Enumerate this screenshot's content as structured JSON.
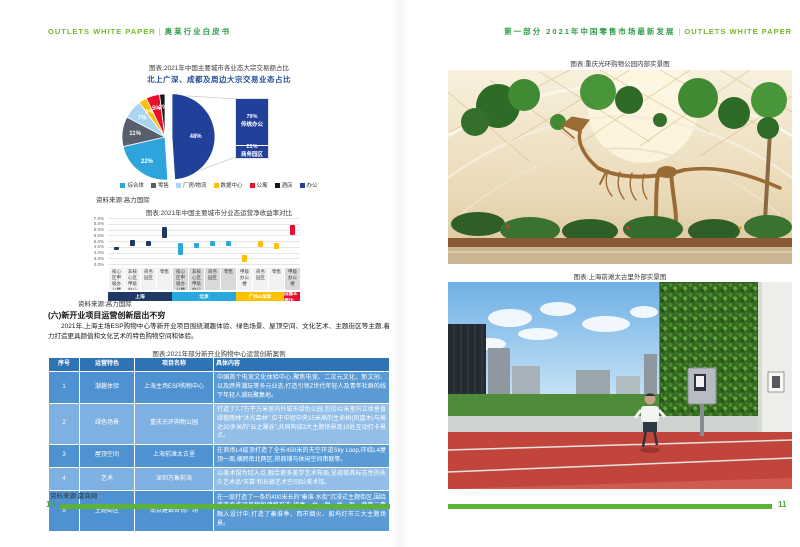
{
  "colors": {
    "accent_green": "#5CB335",
    "header_green_en": "#76B82A",
    "header_green_cn": "#2F9E49",
    "title_blue": "#1F4E9C",
    "table_header_blue": "#2E74B5",
    "table_row_blue": "#5B9BD5",
    "table_row_light_blue": "#92BEE8"
  },
  "left_page": {
    "header": {
      "en": "OUTLETS  WHITE PAPER",
      "sep": "|",
      "cn": "奥莱行业白皮书"
    },
    "pie_caption": "图表:2021年中国主要城市各业态大宗交易额占比",
    "source_colliers_1": "资料来源:高力国际",
    "bar_caption": "图表:2021年中国主要城市分业态运营净收益率对比",
    "source_colliers_2": "资料来源:高力国际",
    "section_heading": "(六)新开业项目运营创新层出不穷",
    "paragraph": "2021年,上海主场ESP购物中心等新开业项目围绕潮趣体验、绿色场景、屋顶空间、文化艺术、主题街区等主题,着力打造更具颜值和文化艺术的特色购物空间和体验。",
    "table_caption": "图表:2021年部分新开业购物中心运营创新案例",
    "table": {
      "headers": [
        "序号",
        "运营特色",
        "项目名称",
        "具体内容"
      ],
      "rows": [
        [
          "1",
          "潮趣体验",
          "上海主场ESP购物中心",
          "中国首个电竞文化体验中心,聚焦电竞、二次元文化、新文创、以及跨界潮玩等多元业态,打造引领Z世代年轻人及青年社群的线下年轻人潮玩聚集地。"
        ],
        [
          "2",
          "绿色场景",
          "重庆光环购物公园",
          "打造了7.7万平方米室内外城市绿色公园,包括42米室内立体垂直绿植雨林“沐光森林”,位于中庭中央15米高的生命树(凤凰木)与高达20多米的“云之瀑谷”,共同构成3大主题场景及18处互动打卡景点。"
        ],
        [
          "3",
          "屋顶空间",
          "上海前滩太古里",
          "在商场L4层顶打造了全长450米的天空环道Sky Loop,环绕L4屋顶一周,横跨南北两区,将商铺与休闲空间串联等。"
        ],
        [
          "4",
          "艺术",
          "深圳万象前海",
          "以美术馆为切入点,融合更多美学艺术布局,呈现极具标志性的永久艺术品“天幕”和长廊艺术空间B2美术馆。"
        ],
        [
          "5",
          "主题街区",
          "南京建邺吾悦广场",
          "在一层打造了一条约400米长的“秦淮·水街”沉浸式主题街区,围绕南京秦淮河风貌和建筑形态,将亭、台、廊、桥、街、巷等元素融入设计中,打造了秦淮季、西市烟火、船坞灯市三大主题场景。"
        ]
      ]
    },
    "source_winshang": "资料来源:赢商网",
    "page_number": "10"
  },
  "right_page": {
    "header": {
      "cn": "第一部分    2021年中国零售市场最新发展",
      "sep": "|",
      "en": "OUTLETS  WHITE PAPER"
    },
    "photo1_caption": "图表:重庆光环购物公园内部实景图",
    "photo2_caption": "图表:上海前滩太古里外部实景图",
    "page_number": "11"
  },
  "chart_data": [
    {
      "type": "pie",
      "title": "北上广深、成都及周边大宗交易业态占比",
      "slices": [
        {
          "label": "办公",
          "value": 48,
          "color": "#21409A",
          "explode": true
        },
        {
          "label": "综合体",
          "value": 22,
          "color": "#2FA3DC"
        },
        {
          "label": "零售",
          "value": 11,
          "color": "#565F6B"
        },
        {
          "label": "厂房/物流",
          "value": 7,
          "color": "#A9D5F0"
        },
        {
          "label": "数据中心",
          "value": 3,
          "color": "#FFC000"
        },
        {
          "label": "公寓",
          "value": 5,
          "color": "#E8112D"
        },
        {
          "label": "酒店",
          "value": 2,
          "color": "#17171B"
        }
      ],
      "legend": [
        "综合体",
        "零售",
        "厂房/物流",
        "数据中心",
        "公寓",
        "酒店",
        "办公"
      ],
      "callout": {
        "color": "#21409A",
        "segments": [
          {
            "pct": "79%",
            "label": "传统办公",
            "share": 0.79
          },
          {
            "pct": "21%",
            "label": "商务园区",
            "share": 0.21
          }
        ]
      }
    },
    {
      "type": "range_bar",
      "title": "2021年中国主要城市分业态运营净收益率对比",
      "ylim": [
        3.0,
        7.0
      ],
      "yticks": [
        "7.0%",
        "6.5%",
        "6.0%",
        "5.5%",
        "5.0%",
        "4.5%",
        "4.0%",
        "3.5%",
        "3.0%"
      ],
      "grid": true,
      "groups": [
        {
          "name": "上海",
          "color": "#1F3864",
          "items": [
            {
              "label": "核心区甲级办公楼",
              "range": [
                4.2,
                4.5
              ]
            },
            {
              "label": "非核心区甲级办公楼",
              "range": [
                4.6,
                5.1
              ]
            },
            {
              "label": "商务园区",
              "range": [
                4.6,
                5.0
              ]
            },
            {
              "label": "零售",
              "range": [
                5.3,
                6.2
              ]
            }
          ]
        },
        {
          "name": "北京",
          "color": "#29A8E0",
          "items": [
            {
              "label": "核心区甲级办公楼",
              "range": [
                3.8,
                4.8
              ]
            },
            {
              "label": "非核心区甲级办公楼",
              "range": [
                4.4,
                4.8
              ]
            },
            {
              "label": "商务园区",
              "range": [
                4.6,
                5.0
              ]
            },
            {
              "label": "零售",
              "range": [
                4.6,
                5.0
              ]
            }
          ]
        },
        {
          "name": "广州&深圳",
          "color": "#FFC000",
          "items": [
            {
              "label": "甲级办公楼",
              "range": [
                3.2,
                3.8
              ]
            },
            {
              "label": "商务园区",
              "range": [
                4.5,
                5.0
              ]
            },
            {
              "label": "零售",
              "range": [
                4.3,
                4.8
              ]
            }
          ]
        },
        {
          "name": "成都&周边",
          "color": "#E8112D",
          "items": [
            {
              "label": "甲级办公楼",
              "range": [
                5.5,
                6.4
              ]
            }
          ]
        }
      ]
    }
  ]
}
